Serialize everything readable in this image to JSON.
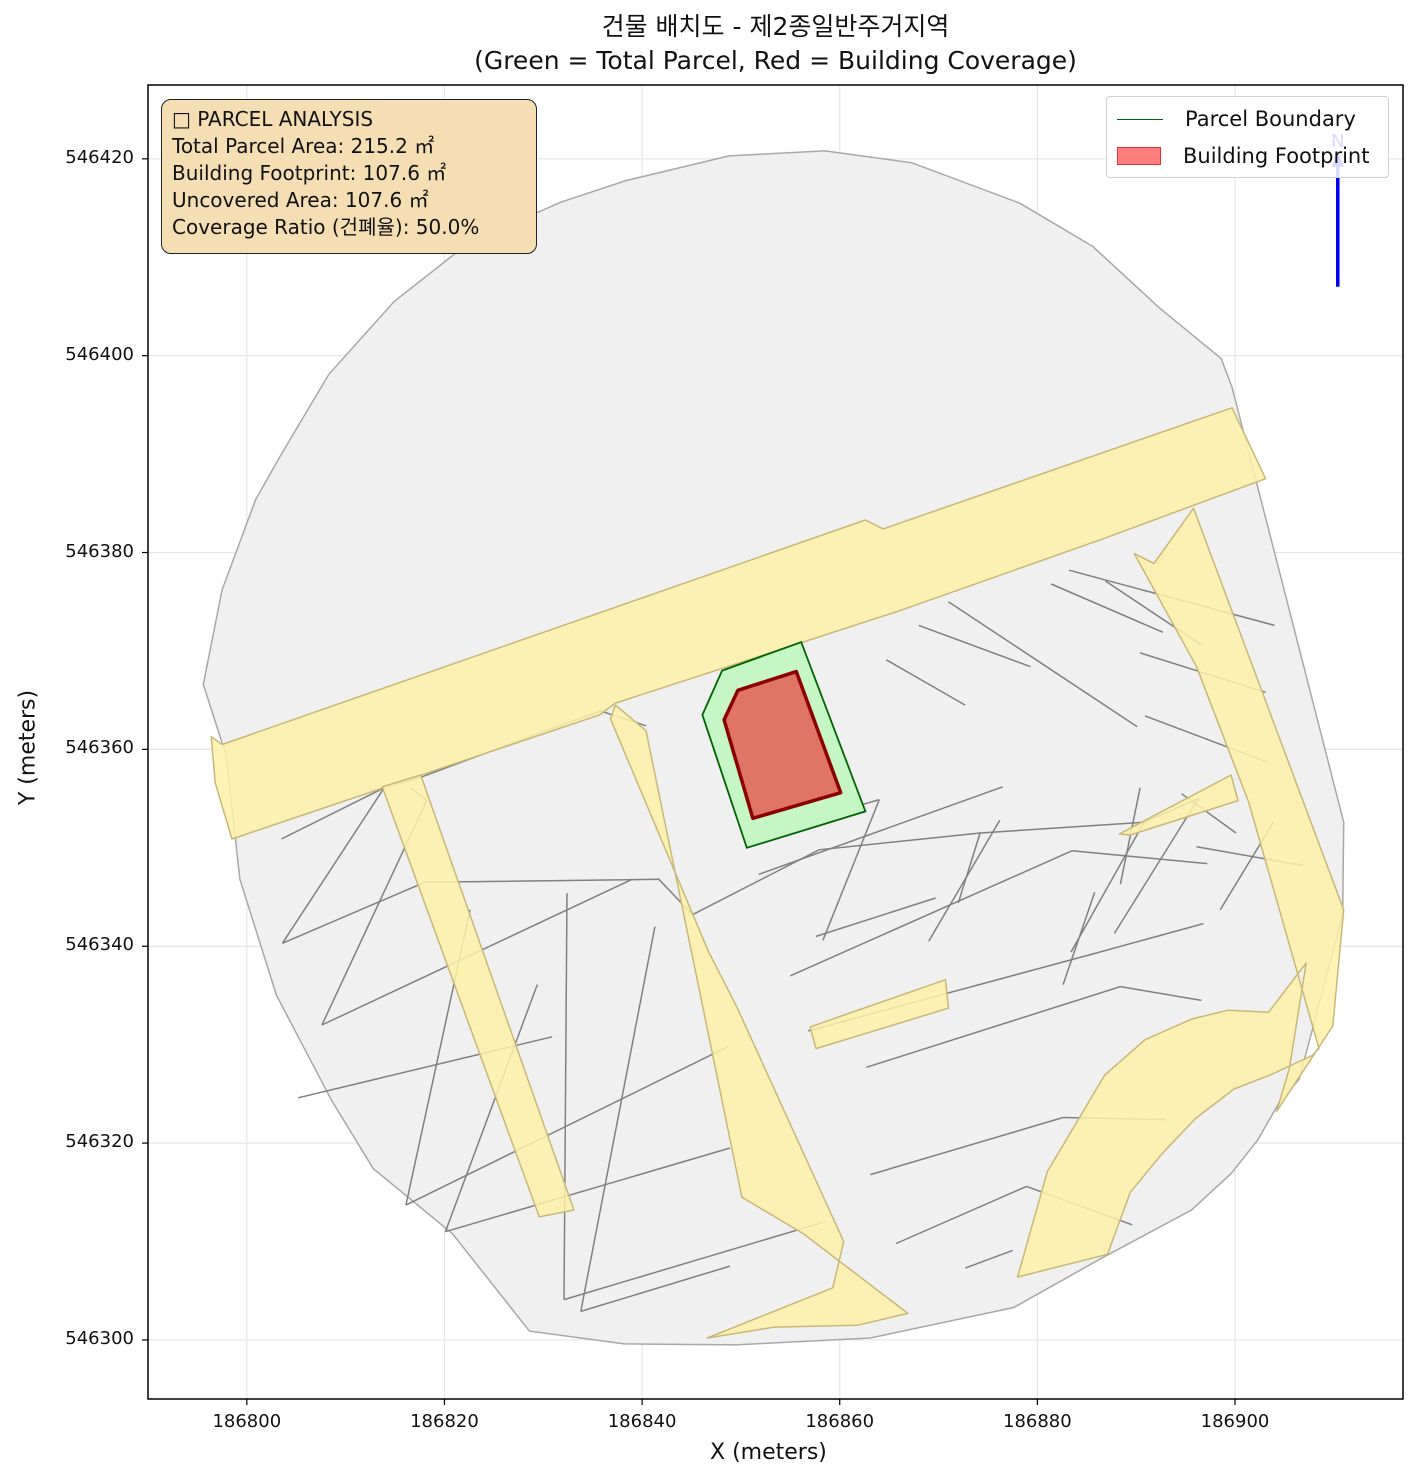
{
  "title": {
    "line1": "건물 배치도 - 제2종일반주거지역",
    "line2": "(Green = Total Parcel, Red = Building Coverage)"
  },
  "axes": {
    "xlabel": "X (meters)",
    "ylabel": "Y (meters)",
    "xlim": [
      186790,
      186917
    ],
    "ylim": [
      546294.0,
      546427.5
    ],
    "xticks": [
      186800,
      186820,
      186840,
      186860,
      186880,
      186900
    ],
    "yticks": [
      546300,
      546320,
      546340,
      546360,
      546380,
      546400,
      546420
    ],
    "grid": true
  },
  "info": {
    "heading": "□ PARCEL ANALYSIS",
    "total_area": "Total Parcel Area: 215.2 ㎡",
    "footprint": "Building Footprint: 107.6 ㎡",
    "uncovered": "Uncovered Area: 107.6 ㎡",
    "coverage": "Coverage Ratio (건폐율): 50.0%"
  },
  "legend": {
    "placement": "upper right",
    "parcel_label": "Parcel Boundary",
    "building_label": "Building Footprint"
  },
  "north_arrow": {
    "label": "N",
    "color": "#0000ee"
  },
  "colors": {
    "context_fill": "#f0f0f0",
    "context_edge": "#a8a8a8",
    "parcel_edge_gray": "#808080",
    "road_fill": "#fff0a8",
    "road_edge": "#c8b878",
    "target_parcel_fill": "#c6f5c6",
    "target_parcel_edge": "#006400",
    "building_fill": "#e07565",
    "building_edge": "#8b0000"
  },
  "chart_data": {
    "type": "map",
    "target_parcel": {
      "area_m2": 215.2,
      "polygon": [
        [
          186846.1,
          546363.5
        ],
        [
          186848.1,
          546368.0
        ],
        [
          186856.1,
          546370.9
        ],
        [
          186862.6,
          546353.7
        ],
        [
          186850.6,
          546350.0
        ],
        [
          186846.1,
          546363.5
        ]
      ]
    },
    "building": {
      "area_m2": 107.6,
      "coverage_ratio_percent": 50.0,
      "polygon": [
        [
          186848.3,
          546363.0
        ],
        [
          186849.7,
          546366.0
        ],
        [
          186855.6,
          546367.9
        ],
        [
          186860.1,
          546355.6
        ],
        [
          186851.2,
          546353.0
        ],
        [
          186848.3,
          546363.0
        ]
      ]
    },
    "context_boundary": [
      [
        186795.6,
        546366.6
      ],
      [
        186797.5,
        546376.2
      ],
      [
        186800.9,
        546385.4
      ],
      [
        186803.5,
        546390.0
      ],
      [
        186808.3,
        546398.1
      ],
      [
        186814.9,
        546405.5
      ],
      [
        186822.5,
        546411.5
      ],
      [
        186831.8,
        546415.6
      ],
      [
        186838.4,
        546417.8
      ],
      [
        186848.8,
        546420.3
      ],
      [
        186858.5,
        546420.8
      ],
      [
        186867.3,
        546419.6
      ],
      [
        186878.2,
        546415.5
      ],
      [
        186885.6,
        546411.1
      ],
      [
        186892.3,
        546404.9
      ],
      [
        186898.6,
        546399.7
      ],
      [
        186899.7,
        546396.8
      ],
      [
        186905.0,
        546376.1
      ],
      [
        186911.0,
        546352.6
      ],
      [
        186910.9,
        546343.2
      ],
      [
        186908.3,
        546333.3
      ],
      [
        186906.5,
        546326.5
      ],
      [
        186904.4,
        546324.0
      ],
      [
        186902.3,
        546320.3
      ],
      [
        186899.6,
        546316.9
      ],
      [
        186895.6,
        546313.2
      ],
      [
        186886.5,
        546308.3
      ],
      [
        186877.6,
        546303.3
      ],
      [
        186863.1,
        546300.2
      ],
      [
        186849.4,
        546299.5
      ],
      [
        186838.2,
        546299.6
      ],
      [
        186828.6,
        546300.9
      ],
      [
        186820.8,
        546310.8
      ],
      [
        186812.8,
        546317.4
      ],
      [
        186808.6,
        546324.3
      ],
      [
        186803.0,
        546335.0
      ],
      [
        186799.3,
        546346.8
      ],
      [
        186797.9,
        546359.4
      ],
      [
        186795.6,
        546366.6
      ]
    ],
    "parcel_lines": [
      [
        [
          186803.5,
          546350.9
        ],
        [
          186813.9,
          546356.1
        ],
        [
          186817.7,
          546357.2
        ],
        [
          186831.1,
          546362.2
        ],
        [
          186835.8,
          546363.9
        ],
        [
          186840.4,
          546362.4
        ]
      ],
      [
        [
          186803.6,
          546340.3
        ],
        [
          186818.0,
          546346.5
        ],
        [
          186841.7,
          546346.8
        ],
        [
          186845.1,
          546343.2
        ],
        [
          186857.9,
          546349.8
        ],
        [
          186874.2,
          546351.5
        ],
        [
          186890.8,
          546352.6
        ],
        [
          186896.3,
          546355.0
        ]
      ],
      [
        [
          186807.6,
          546332.0
        ],
        [
          186839.0,
          546346.8
        ]
      ],
      [
        [
          186805.2,
          546324.6
        ],
        [
          186830.9,
          546330.8
        ]
      ],
      [
        [
          186816.1,
          546313.7
        ],
        [
          186848.7,
          546329.8
        ]
      ],
      [
        [
          186820.1,
          546311.0
        ],
        [
          186848.9,
          546319.5
        ]
      ],
      [
        [
          186832.1,
          546304.1
        ],
        [
          186858.5,
          546312.0
        ]
      ],
      [
        [
          186833.8,
          546302.9
        ],
        [
          186848.9,
          546307.5
        ]
      ],
      [
        [
          186850.7,
          546351.0
        ],
        [
          186864.0,
          546354.9
        ]
      ],
      [
        [
          186851.8,
          546347.3
        ],
        [
          186876.5,
          546356.2
        ]
      ],
      [
        [
          186855.0,
          546337.0
        ],
        [
          186883.5,
          546349.7
        ]
      ],
      [
        [
          186856.8,
          546331.4
        ],
        [
          186886.3,
          546339.4
        ]
      ],
      [
        [
          186862.7,
          546327.7
        ],
        [
          186888.4,
          546335.9
        ]
      ],
      [
        [
          186863.1,
          546316.8
        ],
        [
          186882.6,
          546322.6
        ]
      ],
      [
        [
          186865.7,
          546309.8
        ],
        [
          186878.9,
          546315.6
        ]
      ],
      [
        [
          186872.7,
          546307.3
        ],
        [
          186877.5,
          546309.1
        ]
      ],
      [
        [
          186857.6,
          546341.0
        ],
        [
          186869.7,
          546344.9
        ]
      ],
      [
        [
          186816.6,
          546356.1
        ],
        [
          186818.2,
          546354.8
        ]
      ],
      [
        [
          186813.9,
          546356.1
        ],
        [
          186803.6,
          546340.3
        ]
      ],
      [
        [
          186818.2,
          546354.8
        ],
        [
          186807.6,
          546332.0
        ]
      ],
      [
        [
          186822.6,
          546343.7
        ],
        [
          186816.1,
          546313.7
        ]
      ],
      [
        [
          186829.4,
          546336.1
        ],
        [
          186820.1,
          546311.0
        ]
      ],
      [
        [
          186832.4,
          546345.4
        ],
        [
          186832.1,
          546304.1
        ]
      ],
      [
        [
          186841.3,
          546342.0
        ],
        [
          186833.8,
          546302.9
        ]
      ],
      [
        [
          186864.7,
          546369.1
        ],
        [
          186872.7,
          546364.5
        ]
      ],
      [
        [
          186868.0,
          546372.6
        ],
        [
          186879.3,
          546368.4
        ]
      ],
      [
        [
          186871.0,
          546375.0
        ],
        [
          186890.1,
          546362.3
        ]
      ],
      [
        [
          186881.4,
          546376.8
        ],
        [
          186892.7,
          546371.9
        ]
      ],
      [
        [
          186883.2,
          546378.2
        ],
        [
          186904.0,
          546372.6
        ]
      ],
      [
        [
          186886.9,
          546377.1
        ],
        [
          186896.6,
          546370.6
        ]
      ],
      [
        [
          186890.4,
          546369.8
        ],
        [
          186903.1,
          546365.8
        ]
      ],
      [
        [
          186890.9,
          546363.4
        ],
        [
          186903.3,
          546358.7
        ]
      ],
      [
        [
          186894.6,
          546355.5
        ],
        [
          186900.1,
          546351.5
        ]
      ],
      [
        [
          186896.1,
          546350.1
        ],
        [
          186906.9,
          546348.2
        ]
      ],
      [
        [
          186883.5,
          546349.7
        ],
        [
          186897.2,
          546348.4
        ]
      ],
      [
        [
          186886.3,
          546339.4
        ],
        [
          186896.8,
          546342.3
        ]
      ],
      [
        [
          186888.4,
          546335.9
        ],
        [
          186896.6,
          546334.5
        ]
      ],
      [
        [
          186882.6,
          546322.6
        ],
        [
          186892.9,
          546322.4
        ]
      ],
      [
        [
          186878.9,
          546315.6
        ],
        [
          186889.6,
          546311.7
        ]
      ],
      [
        [
          186864.0,
          546354.9
        ],
        [
          186858.3,
          546340.6
        ]
      ],
      [
        [
          186876.2,
          546352.8
        ],
        [
          186869.0,
          546340.5
        ]
      ],
      [
        [
          186874.2,
          546351.5
        ],
        [
          186872.0,
          546344.4
        ]
      ],
      [
        [
          186890.8,
          546352.6
        ],
        [
          186883.4,
          546339.4
        ]
      ],
      [
        [
          186890.4,
          546356.1
        ],
        [
          186888.4,
          546346.3
        ]
      ],
      [
        [
          186885.8,
          546345.5
        ],
        [
          186882.6,
          546336.1
        ]
      ],
      [
        [
          186896.3,
          546355.0
        ],
        [
          186887.8,
          546341.3
        ]
      ],
      [
        [
          186903.9,
          546352.6
        ],
        [
          186898.5,
          546343.7
        ]
      ]
    ],
    "roads": [
      [
        [
          186796.4,
          546361.3
        ],
        [
          186797.5,
          546360.5
        ],
        [
          186862.6,
          546383.3
        ],
        [
          186864.4,
          546382.4
        ],
        [
          186899.7,
          546394.7
        ],
        [
          186903.1,
          546387.5
        ],
        [
          186886.4,
          546381.3
        ],
        [
          186866.1,
          546374.1
        ],
        [
          186837.3,
          546364.7
        ],
        [
          186835.7,
          546363.5
        ],
        [
          186822.1,
          546358.9
        ],
        [
          186798.5,
          546350.9
        ],
        [
          186796.8,
          546356.6
        ],
        [
          186796.4,
          546361.3
        ]
      ],
      [
        [
          186813.7,
          546356.2
        ],
        [
          186817.6,
          546357.4
        ],
        [
          186833.1,
          546313.2
        ],
        [
          186829.6,
          546312.5
        ],
        [
          186813.7,
          546356.2
        ]
      ],
      [
        [
          186837.3,
          546364.5
        ],
        [
          186840.4,
          546361.9
        ],
        [
          186850.1,
          546314.5
        ],
        [
          186856.3,
          546310.8
        ],
        [
          186866.9,
          546302.7
        ],
        [
          186861.8,
          546301.5
        ],
        [
          186853.4,
          546301.3
        ],
        [
          186846.6,
          546300.2
        ],
        [
          186859.3,
          546305.3
        ],
        [
          186860.4,
          546310.0
        ],
        [
          186849.6,
          546333.8
        ],
        [
          186846.7,
          546339.5
        ],
        [
          186836.8,
          546363.1
        ],
        [
          186837.3,
          546364.5
        ]
      ],
      [
        [
          186857.0,
          546331.8
        ],
        [
          186870.7,
          546336.6
        ],
        [
          186871.0,
          546333.7
        ],
        [
          186857.6,
          546329.6
        ],
        [
          186857.0,
          546331.8
        ]
      ],
      [
        [
          186888.3,
          546351.4
        ],
        [
          186899.6,
          546357.4
        ],
        [
          186900.3,
          546354.8
        ],
        [
          186889.4,
          546351.3
        ],
        [
          186888.3,
          546351.4
        ]
      ],
      [
        [
          186889.8,
          546379.9
        ],
        [
          186891.8,
          546378.9
        ],
        [
          186895.8,
          546384.5
        ],
        [
          186911.0,
          546343.7
        ],
        [
          186909.9,
          546331.9
        ],
        [
          186904.2,
          546323.2
        ],
        [
          186905.5,
          546327.6
        ],
        [
          186907.2,
          546338.3
        ],
        [
          186903.4,
          546333.3
        ],
        [
          186899.3,
          546333.5
        ],
        [
          186895.6,
          546332.6
        ],
        [
          186890.9,
          546330.5
        ],
        [
          186886.8,
          546326.9
        ],
        [
          186884.5,
          546323.0
        ],
        [
          186881.0,
          546317.1
        ],
        [
          186878.0,
          546306.4
        ],
        [
          186887.1,
          546308.7
        ],
        [
          186889.4,
          546315.0
        ],
        [
          186892.6,
          546318.9
        ],
        [
          186896.0,
          546322.5
        ],
        [
          186899.9,
          546325.5
        ],
        [
          186903.5,
          546326.9
        ],
        [
          186907.8,
          546328.9
        ],
        [
          186908.5,
          546329.6
        ],
        [
          186901.4,
          546354.6
        ],
        [
          186896.1,
          546368.4
        ],
        [
          186889.8,
          546379.9
        ]
      ]
    ]
  }
}
